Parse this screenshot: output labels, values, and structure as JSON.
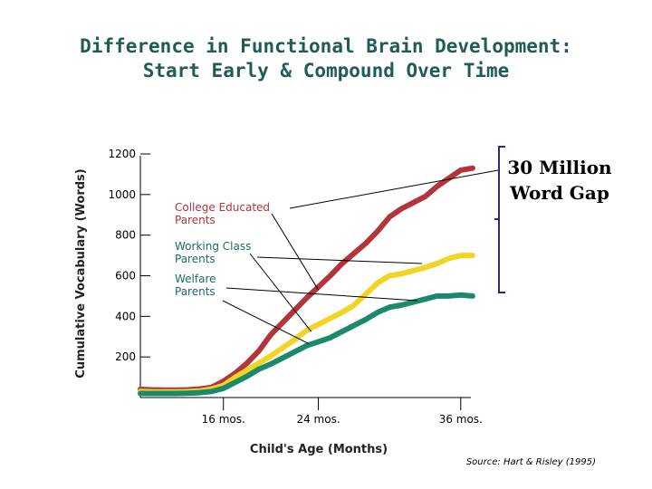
{
  "title_lines": [
    "Difference in Functional Brain Development:",
    "Start Early & Compound Over Time"
  ],
  "chart_data": {
    "type": "line",
    "xlabel": "Child's Age (Months)",
    "ylabel": "Cumulative Vocabulary (Words)",
    "ylim": [
      0,
      1200
    ],
    "xlim": [
      9,
      38
    ],
    "yticks": [
      200,
      400,
      600,
      800,
      1000,
      1200
    ],
    "xticks": [
      {
        "value": 16,
        "label": "16 mos."
      },
      {
        "value": 24,
        "label": "24 mos."
      },
      {
        "value": 36,
        "label": "36 mos."
      }
    ],
    "grid": false,
    "series": [
      {
        "name": "College Educated Parents",
        "label_lines": [
          "College Educated",
          "Parents"
        ],
        "color": "#b3343b",
        "x": [
          9,
          10,
          11,
          12,
          13,
          14,
          15,
          16,
          17,
          18,
          19,
          20,
          21,
          22,
          23,
          24,
          25,
          26,
          27,
          28,
          29,
          30,
          31,
          32,
          33,
          34,
          35,
          36,
          37
        ],
        "y": [
          40,
          38,
          37,
          37,
          38,
          42,
          50,
          80,
          120,
          170,
          230,
          310,
          370,
          430,
          490,
          545,
          600,
          660,
          710,
          760,
          820,
          890,
          930,
          960,
          990,
          1040,
          1080,
          1120,
          1130
        ]
      },
      {
        "name": "Working Class Parents",
        "label_lines": [
          "Working Class",
          "Parents"
        ],
        "color": "#f2d422",
        "x": [
          9,
          10,
          11,
          12,
          13,
          14,
          15,
          16,
          17,
          18,
          19,
          20,
          21,
          22,
          23,
          24,
          25,
          26,
          27,
          28,
          29,
          30,
          31,
          32,
          33,
          34,
          35,
          36,
          37
        ],
        "y": [
          30,
          28,
          28,
          28,
          29,
          32,
          42,
          60,
          100,
          135,
          170,
          205,
          245,
          285,
          330,
          360,
          390,
          420,
          455,
          510,
          565,
          600,
          610,
          625,
          640,
          660,
          685,
          700,
          700
        ]
      },
      {
        "name": "Welfare Parents",
        "label_lines": [
          "Welfare",
          "Parents"
        ],
        "color": "#1b8a6b",
        "x": [
          9,
          10,
          11,
          12,
          13,
          14,
          15,
          16,
          17,
          18,
          19,
          20,
          21,
          22,
          23,
          24,
          25,
          26,
          27,
          28,
          29,
          30,
          31,
          32,
          33,
          34,
          35,
          36,
          37
        ],
        "y": [
          20,
          20,
          20,
          20,
          21,
          24,
          30,
          45,
          75,
          105,
          140,
          165,
          195,
          225,
          255,
          275,
          295,
          325,
          355,
          385,
          420,
          445,
          455,
          470,
          485,
          500,
          500,
          505,
          500
        ]
      }
    ],
    "annotations": {
      "gap_label_lines": [
        "30 Million",
        "Word Gap"
      ],
      "source": "Source: Hart & Risley (1995)"
    }
  }
}
